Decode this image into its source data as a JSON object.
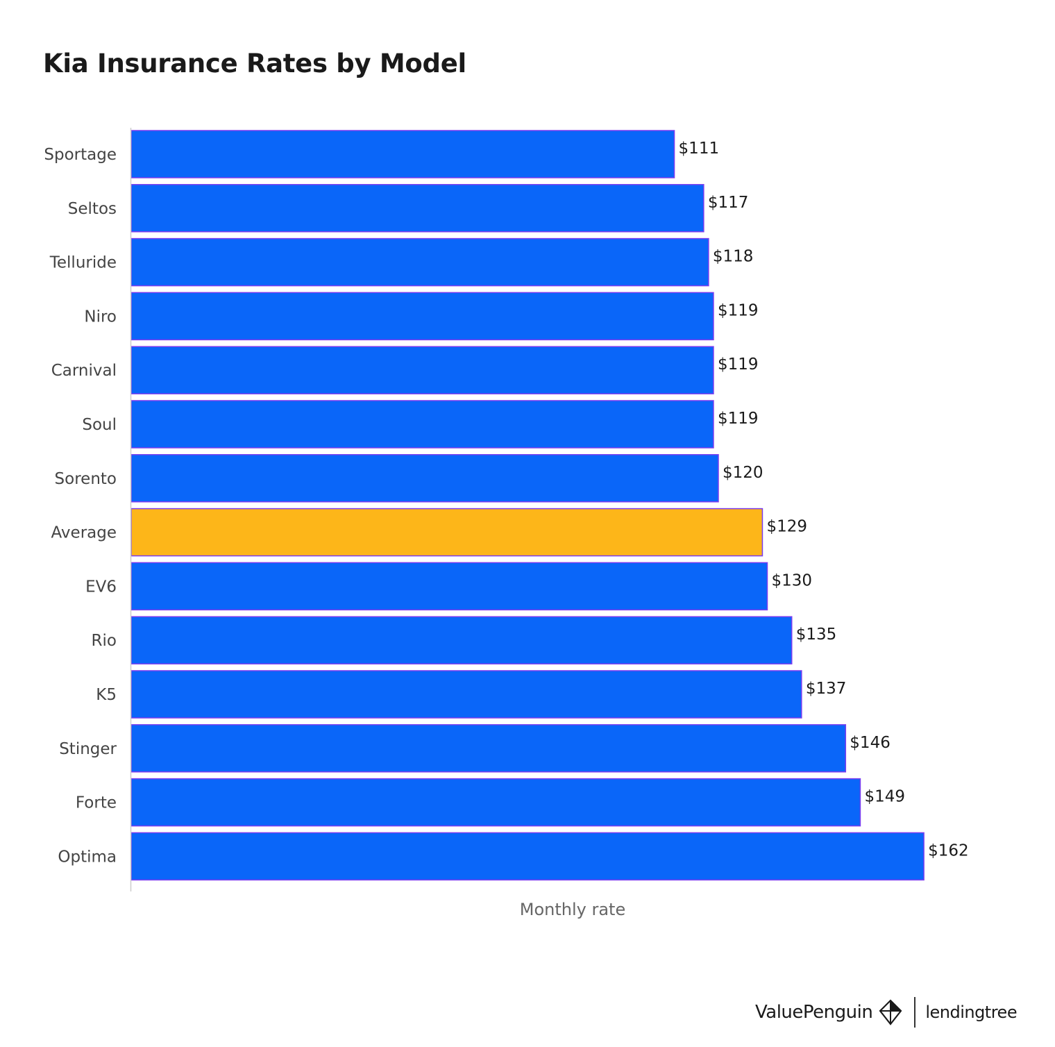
{
  "chart_data": {
    "type": "bar",
    "orientation": "horizontal",
    "title": "Kia Insurance Rates by Model",
    "xlabel": "Monthly rate",
    "ylabel": "",
    "categories": [
      "Sportage",
      "Seltos",
      "Telluride",
      "Niro",
      "Carnival",
      "Soul",
      "Sorento",
      "Average",
      "EV6",
      "Rio",
      "K5",
      "Stinger",
      "Forte",
      "Optima"
    ],
    "values": [
      111,
      117,
      118,
      119,
      119,
      119,
      120,
      129,
      130,
      135,
      137,
      146,
      149,
      162
    ],
    "value_labels": [
      "$111",
      "$117",
      "$118",
      "$119",
      "$119",
      "$119",
      "$120",
      "$129",
      "$130",
      "$135",
      "$137",
      "$146",
      "$149",
      "$162"
    ],
    "highlight_category": "Average",
    "colors": {
      "bar": "#0a66f9",
      "highlight": "#fdb619",
      "bar_edge": "#7a3cf0"
    },
    "xlim": [
      0,
      162
    ],
    "grid": false,
    "legend": "none"
  },
  "branding": {
    "primary": "ValuePenguin",
    "secondary": "lendingtree",
    "icon": "penguin-logo-icon"
  }
}
